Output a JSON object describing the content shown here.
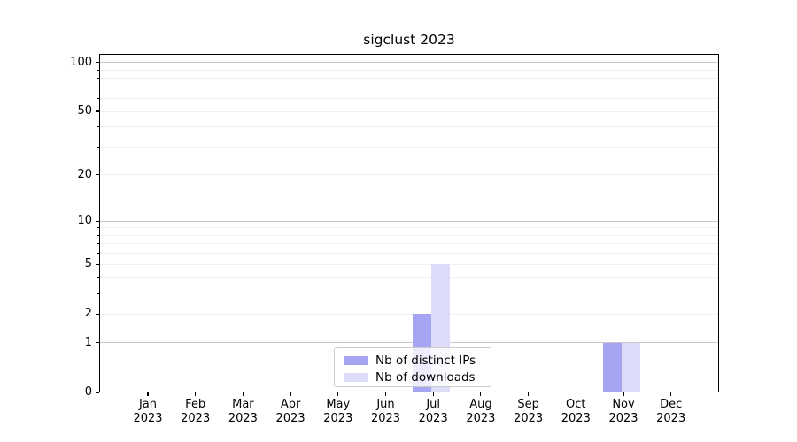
{
  "chart_data": {
    "type": "bar",
    "title": "sigclust 2023",
    "categories": [
      "Jan",
      "Feb",
      "Mar",
      "Apr",
      "May",
      "Jun",
      "Jul",
      "Aug",
      "Sep",
      "Oct",
      "Nov",
      "Dec"
    ],
    "year": "2023",
    "series": [
      {
        "name": "Nb of distinct IPs",
        "color": "#a5a5f3",
        "values": [
          0,
          0,
          0,
          0,
          0,
          0,
          2,
          0,
          0,
          0,
          1,
          0
        ]
      },
      {
        "name": "Nb of downloads",
        "color": "#dcdcf8",
        "values": [
          0,
          0,
          0,
          0,
          0,
          0,
          5,
          0,
          0,
          0,
          1,
          0
        ]
      }
    ],
    "xlabel": "",
    "ylabel": "",
    "yscale": "log1p",
    "ylim": [
      0,
      113
    ],
    "yticks": [
      0,
      1,
      2,
      5,
      10,
      20,
      50,
      100
    ],
    "major_gridlines": [
      1,
      10,
      100
    ],
    "minor_gridlines": [
      2,
      3,
      4,
      5,
      6,
      7,
      8,
      9,
      20,
      30,
      40,
      50,
      60,
      70,
      80,
      90
    ],
    "grid": true,
    "legend_position": "inside-bottom-center",
    "colors": {
      "grid_major": "#c6c6c6",
      "grid_minor": "#efefef",
      "axis": "#000000",
      "background": "#ffffff"
    }
  }
}
